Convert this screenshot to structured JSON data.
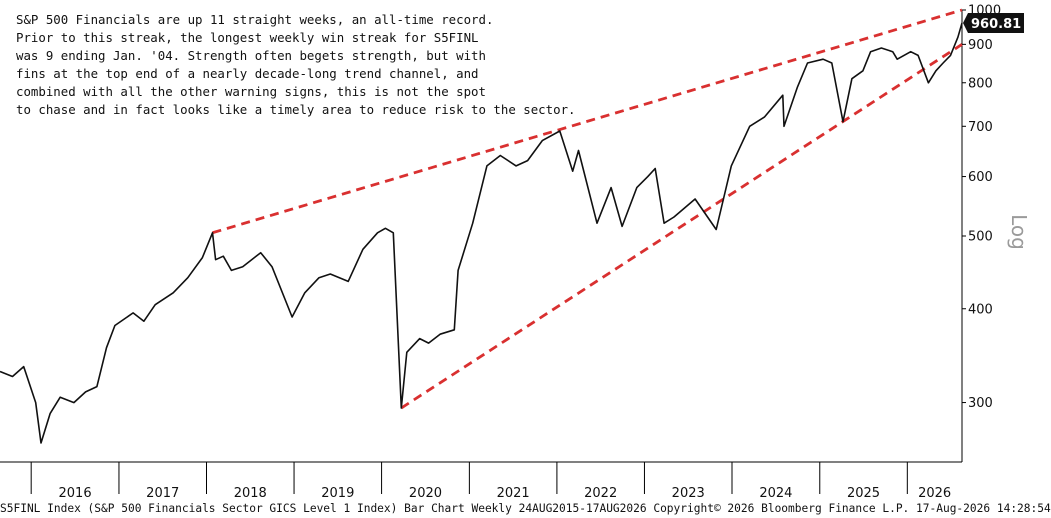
{
  "annotation_lines": [
    "S&P 500 Financials are up 11 straight weeks, an all-time record.",
    "Prior to this streak, the longest weekly win streak for S5FINL",
    "was 9 ending Jan. '04. Strength often begets strength, but with",
    "fins at the top end of a nearly decade-long trend channel, and",
    "combined with all the other warning signs, this is not the spot",
    "to chase and in fact looks like a timely area to reduce risk to the sector."
  ],
  "footer": "S5FINL Index (S&P 500 Financials Sector GICS Level 1 Index) Bar Chart Weekly 24AUG2015-17AUG2026  Copyright© 2026 Bloomberg Finance L.P.  17-Aug-2026 14:28:54",
  "colors": {
    "price": "#111111",
    "trendline": "#d93030",
    "axis": "#000000",
    "last_label_bg": "#111111"
  },
  "chart_data": {
    "type": "line",
    "y_scale": "log",
    "scale_label": "Log",
    "x_range": [
      "2015-08-24",
      "2026-08-17"
    ],
    "ylim": [
      250,
      1000
    ],
    "y_ticks": [
      300,
      400,
      500,
      600,
      700,
      800,
      900,
      1000
    ],
    "x_tick_labels": [
      "2016",
      "2017",
      "2018",
      "2019",
      "2020",
      "2021",
      "2022",
      "2023",
      "2024",
      "2025",
      "2026"
    ],
    "last_value_label": "960.81",
    "series": [
      {
        "x": [
          "2015-08-24",
          "2015-10-15",
          "2015-12-01",
          "2016-01-20",
          "2016-02-11",
          "2016-03-20",
          "2016-05-01",
          "2016-06-27",
          "2016-08-15",
          "2016-10-01",
          "2016-11-10",
          "2016-12-15",
          "2017-03-01",
          "2017-04-15",
          "2017-06-01",
          "2017-08-15",
          "2017-10-15",
          "2017-12-15",
          "2018-01-26",
          "2018-02-08",
          "2018-03-12",
          "2018-04-15",
          "2018-06-01",
          "2018-08-15",
          "2018-10-01",
          "2018-12-24",
          "2019-02-15",
          "2019-04-15",
          "2019-06-01",
          "2019-08-15",
          "2019-10-15",
          "2019-12-15",
          "2020-01-17",
          "2020-02-19",
          "2020-03-23",
          "2020-04-15",
          "2020-06-08",
          "2020-07-15",
          "2020-09-01",
          "2020-10-30",
          "2020-11-15",
          "2021-01-15",
          "2021-03-15",
          "2021-05-10",
          "2021-07-15",
          "2021-09-01",
          "2021-11-01",
          "2022-01-13",
          "2022-03-08",
          "2022-04-01",
          "2022-06-17",
          "2022-08-15",
          "2022-09-30",
          "2022-11-30",
          "2023-01-15",
          "2023-02-15",
          "2023-03-24",
          "2023-05-04",
          "2023-07-31",
          "2023-10-27",
          "2023-12-29",
          "2024-03-15",
          "2024-05-15",
          "2024-07-31",
          "2024-08-05",
          "2024-09-30",
          "2024-11-11",
          "2025-01-15",
          "2025-02-20",
          "2025-04-08",
          "2025-05-15",
          "2025-06-30",
          "2025-08-01",
          "2025-09-15",
          "2025-11-01",
          "2025-11-20",
          "2026-01-15",
          "2026-02-15",
          "2026-03-30",
          "2026-04-30",
          "2026-05-30",
          "2026-06-30",
          "2026-07-31",
          "2026-08-17"
        ],
        "y": [
          330,
          325,
          335,
          300,
          265,
          290,
          305,
          300,
          310,
          315,
          355,
          380,
          395,
          385,
          405,
          420,
          440,
          468,
          505,
          465,
          470,
          450,
          455,
          475,
          455,
          390,
          420,
          440,
          445,
          435,
          480,
          505,
          512,
          505,
          295,
          350,
          365,
          360,
          370,
          375,
          450,
          520,
          620,
          640,
          620,
          630,
          670,
          690,
          610,
          650,
          520,
          580,
          515,
          580,
          600,
          615,
          520,
          530,
          560,
          510,
          620,
          700,
          720,
          770,
          700,
          790,
          850,
          860,
          850,
          710,
          810,
          830,
          880,
          890,
          880,
          860,
          880,
          870,
          800,
          830,
          850,
          870,
          920,
          961
        ]
      }
    ],
    "trendlines": [
      {
        "x": [
          "2018-01-26",
          "2026-08-17"
        ],
        "y": [
          505,
          1000
        ]
      },
      {
        "x": [
          "2020-03-23",
          "2026-08-17"
        ],
        "y": [
          295,
          900
        ]
      }
    ]
  }
}
